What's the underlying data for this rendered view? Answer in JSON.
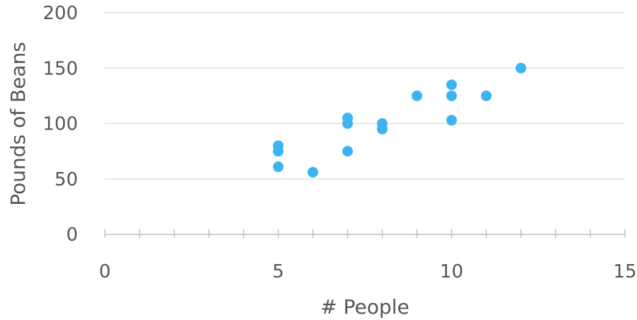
{
  "chart_data": {
    "type": "scatter",
    "xlabel": "# People",
    "ylabel": "Pounds of Beans",
    "xlim": [
      0,
      15
    ],
    "ylim": [
      0,
      200
    ],
    "x_ticks": [
      "0",
      "5",
      "10",
      "15"
    ],
    "y_ticks": [
      "0",
      "50",
      "100",
      "150",
      "200"
    ],
    "x_minor_step": 1,
    "grid": "horizontal",
    "legend": "none",
    "colors": {
      "points": "#3cb4f2",
      "grid": "#d9d9d9",
      "axis": "#bfbfbf",
      "text": "#555555"
    },
    "series": [
      {
        "points": [
          {
            "x": 5,
            "y": 80
          },
          {
            "x": 5,
            "y": 75
          },
          {
            "x": 5,
            "y": 61
          },
          {
            "x": 6,
            "y": 56
          },
          {
            "x": 7,
            "y": 105
          },
          {
            "x": 7,
            "y": 100
          },
          {
            "x": 7,
            "y": 75
          },
          {
            "x": 8,
            "y": 100
          },
          {
            "x": 8,
            "y": 95
          },
          {
            "x": 9,
            "y": 125
          },
          {
            "x": 10,
            "y": 135
          },
          {
            "x": 10,
            "y": 125
          },
          {
            "x": 10,
            "y": 103
          },
          {
            "x": 11,
            "y": 125
          },
          {
            "x": 12,
            "y": 150
          }
        ]
      }
    ]
  }
}
